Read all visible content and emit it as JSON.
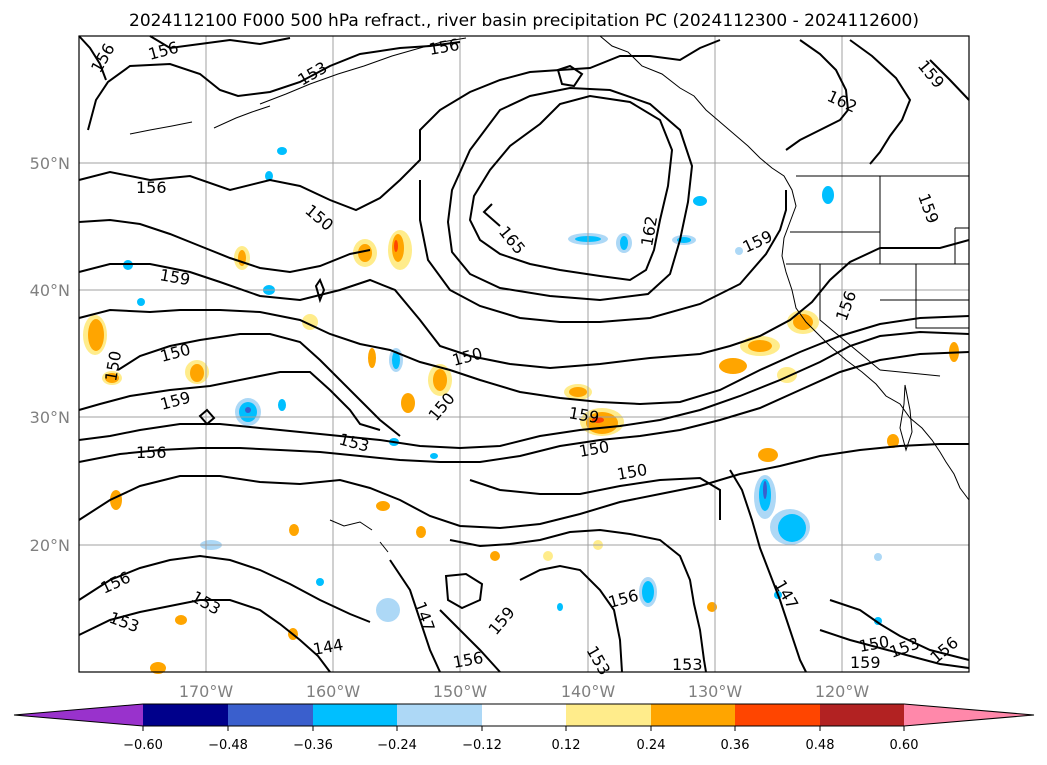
{
  "title": "2024112100 F000 500 hPa refract., river basin precipitation PC (2024112300 - 2024112600)",
  "axes": {
    "lat_labels": [
      "50°N",
      "40°N",
      "30°N",
      "20°N"
    ],
    "lon_labels": [
      "170°W",
      "160°W",
      "150°W",
      "140°W",
      "130°W",
      "120°W"
    ]
  },
  "colorbar": {
    "ticks": [
      "−0.60",
      "−0.48",
      "−0.36",
      "−0.24",
      "−0.12",
      "0.12",
      "0.24",
      "0.36",
      "0.48",
      "0.60"
    ],
    "colors": [
      "#9932cc",
      "#00008b",
      "#3a5fcd",
      "#00bfff",
      "#add8f6",
      "#ffffff",
      "#ffec8b",
      "#ffa500",
      "#ff4500",
      "#b22222",
      "#ff88aa"
    ]
  },
  "contour_labels": [
    "156",
    "156",
    "156",
    "153",
    "159",
    "162",
    "156",
    "150",
    "165",
    "162",
    "159",
    "159",
    "159",
    "150",
    "156",
    "150",
    "159",
    "150",
    "150",
    "153",
    "159",
    "156",
    "150",
    "150",
    "156",
    "153",
    "153",
    "144",
    "147",
    "159",
    "156",
    "153",
    "156",
    "147",
    "153",
    "150",
    "153",
    "159",
    "156"
  ],
  "chart_data": {
    "type": "map",
    "projection": "PlateCarree",
    "lon_range": [
      -180,
      -110
    ],
    "lat_range": [
      10,
      60
    ],
    "grid": true,
    "contour_field": "500 hPa refractivity",
    "contour_levels": [
      144,
      147,
      150,
      153,
      156,
      159,
      162,
      165
    ],
    "filled_field": "river basin precipitation PC",
    "fill_levels": [
      -0.6,
      -0.48,
      -0.36,
      -0.24,
      -0.12,
      0.12,
      0.24,
      0.36,
      0.48,
      0.6
    ]
  }
}
